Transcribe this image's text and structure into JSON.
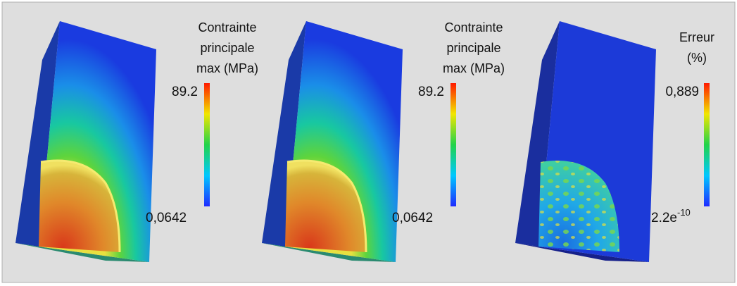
{
  "panels": [
    {
      "title_lines": [
        "Contrainte",
        "principale",
        "max (MPa)"
      ],
      "max_label": "89.2",
      "min_label": "0,0642"
    },
    {
      "title_lines": [
        "Contrainte",
        "principale",
        "max (MPa)"
      ],
      "max_label": "89.2",
      "min_label": "0,0642"
    },
    {
      "title_lines": [
        "Erreur",
        "(%)"
      ],
      "max_label": "0,889",
      "min_label": {
        "base": "2.2e",
        "exponent": "-10"
      }
    }
  ]
}
